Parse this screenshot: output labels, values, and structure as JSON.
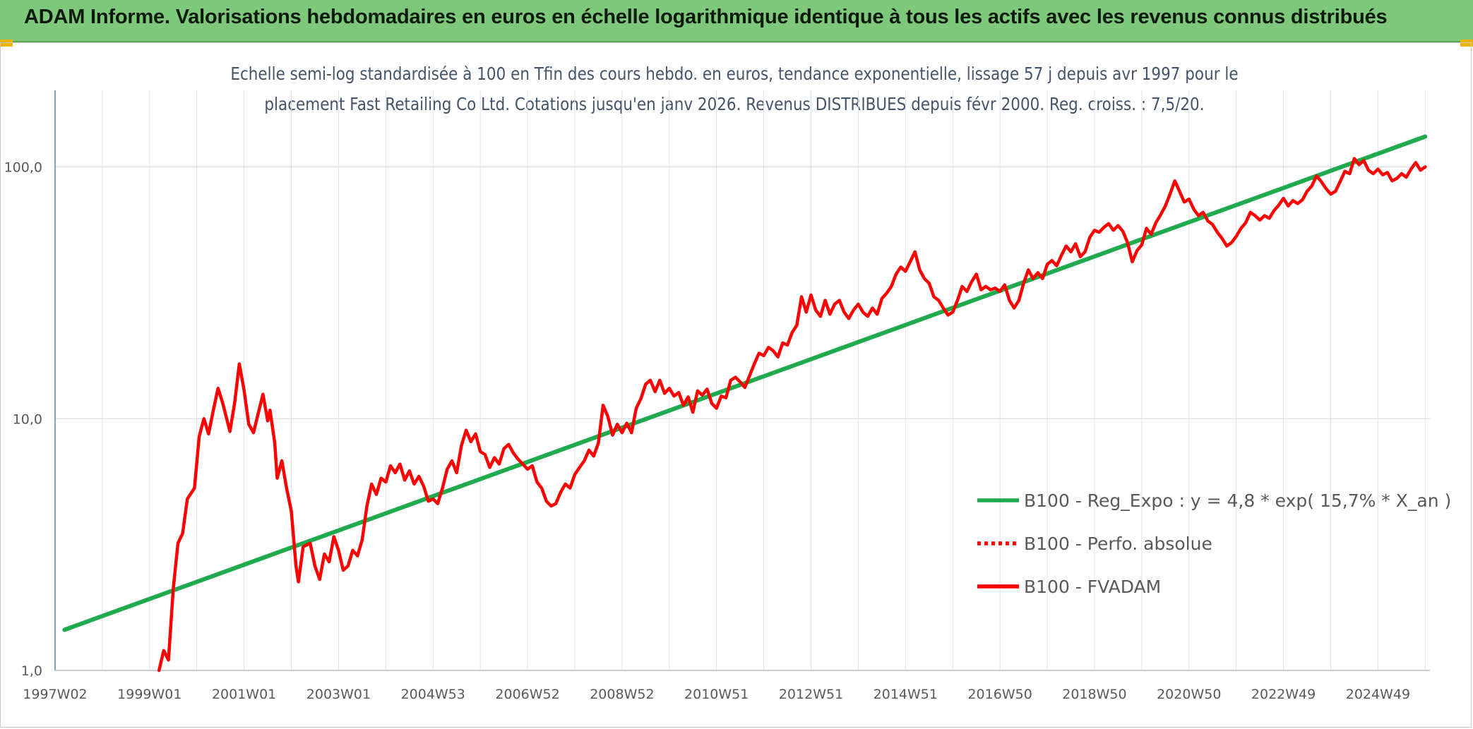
{
  "header": {
    "title": "ADAM Informe. Valorisations hebdomadaires en euros en échelle logarithmique identique à tous les actifs avec les revenus connus distribués",
    "background": "#7dc87a",
    "accent": "#f0b400"
  },
  "chart_data": {
    "type": "line",
    "yscale": "log",
    "title_line1": "Echelle semi-log standardisée à 100 en Tfin des cours hebdo. en euros, tendance exponentielle, lissage 57 j depuis avr 1997 pour le",
    "title_line2": "placement Fast Retailing Co Ltd. Cotations jusqu'en janv 2026. Revenus DISTRIBUES depuis févr 2000. Reg. croiss. : 7,5/20.",
    "xlim": [
      1997.0,
      2026.1
    ],
    "ylim": [
      1,
      200
    ],
    "y_ticks": [
      {
        "value": 1,
        "label": "1,0"
      },
      {
        "value": 10,
        "label": "10,0"
      },
      {
        "value": 100,
        "label": "100,0"
      }
    ],
    "x_ticks": [
      {
        "t": 1997.0,
        "label": "1997W02"
      },
      {
        "t": 1999.0,
        "label": "1999W01"
      },
      {
        "t": 2001.0,
        "label": "2001W01"
      },
      {
        "t": 2003.0,
        "label": "2003W01"
      },
      {
        "t": 2005.0,
        "label": "2004W53"
      },
      {
        "t": 2007.0,
        "label": "2006W52"
      },
      {
        "t": 2009.0,
        "label": "2008W52"
      },
      {
        "t": 2011.0,
        "label": "2010W51"
      },
      {
        "t": 2013.0,
        "label": "2012W51"
      },
      {
        "t": 2015.0,
        "label": "2014W51"
      },
      {
        "t": 2017.0,
        "label": "2016W50"
      },
      {
        "t": 2019.0,
        "label": "2018W50"
      },
      {
        "t": 2021.0,
        "label": "2020W50"
      },
      {
        "t": 2023.0,
        "label": "2022W49"
      },
      {
        "t": 2025.0,
        "label": "2024W49"
      }
    ],
    "legend_position": "right",
    "series": [
      {
        "name": "B100 - Reg_Expo : y = 4,8 * exp( 15,7% *  X_an )",
        "color": "#1faa4e",
        "style": "solid",
        "points": [
          [
            1997.2,
            1.45
          ],
          [
            2026.0,
            132
          ]
        ]
      },
      {
        "name": "B100 - Perfo. absolue",
        "color": "#ff0000",
        "style": "dotted",
        "points": []
      },
      {
        "name": "B100 - FVADAM",
        "color": "#ff0000",
        "style": "solid",
        "points": [
          [
            1999.2,
            1.0
          ],
          [
            1999.3,
            1.2
          ],
          [
            1999.4,
            1.1
          ],
          [
            1999.5,
            2.1
          ],
          [
            1999.6,
            3.2
          ],
          [
            1999.7,
            3.5
          ],
          [
            1999.8,
            4.8
          ],
          [
            1999.95,
            5.3
          ],
          [
            2000.05,
            8.5
          ],
          [
            2000.15,
            10.0
          ],
          [
            2000.25,
            8.7
          ],
          [
            2000.35,
            10.8
          ],
          [
            2000.45,
            13.2
          ],
          [
            2000.55,
            11.5
          ],
          [
            2000.7,
            8.9
          ],
          [
            2000.8,
            11.5
          ],
          [
            2000.9,
            16.5
          ],
          [
            2001.0,
            13.0
          ],
          [
            2001.1,
            9.5
          ],
          [
            2001.2,
            8.8
          ],
          [
            2001.3,
            10.5
          ],
          [
            2001.4,
            12.5
          ],
          [
            2001.5,
            9.8
          ],
          [
            2001.55,
            10.8
          ],
          [
            2001.65,
            8.0
          ],
          [
            2001.7,
            5.8
          ],
          [
            2001.8,
            6.8
          ],
          [
            2001.9,
            5.3
          ],
          [
            2002.0,
            4.3
          ],
          [
            2002.1,
            2.6
          ],
          [
            2002.15,
            2.25
          ],
          [
            2002.25,
            3.1
          ],
          [
            2002.4,
            3.2
          ],
          [
            2002.5,
            2.6
          ],
          [
            2002.6,
            2.3
          ],
          [
            2002.7,
            2.9
          ],
          [
            2002.8,
            2.7
          ],
          [
            2002.9,
            3.4
          ],
          [
            2003.0,
            3.0
          ],
          [
            2003.1,
            2.5
          ],
          [
            2003.2,
            2.6
          ],
          [
            2003.3,
            3.0
          ],
          [
            2003.4,
            2.85
          ],
          [
            2003.5,
            3.3
          ],
          [
            2003.6,
            4.5
          ],
          [
            2003.7,
            5.5
          ],
          [
            2003.8,
            5.0
          ],
          [
            2003.9,
            5.8
          ],
          [
            2004.0,
            5.6
          ],
          [
            2004.1,
            6.5
          ],
          [
            2004.2,
            6.1
          ],
          [
            2004.3,
            6.6
          ],
          [
            2004.4,
            5.7
          ],
          [
            2004.5,
            6.2
          ],
          [
            2004.6,
            5.5
          ],
          [
            2004.7,
            5.9
          ],
          [
            2004.8,
            5.4
          ],
          [
            2004.9,
            4.7
          ],
          [
            2005.0,
            4.8
          ],
          [
            2005.1,
            4.6
          ],
          [
            2005.2,
            5.3
          ],
          [
            2005.3,
            6.3
          ],
          [
            2005.4,
            6.8
          ],
          [
            2005.5,
            6.1
          ],
          [
            2005.6,
            7.8
          ],
          [
            2005.7,
            9.0
          ],
          [
            2005.8,
            8.1
          ],
          [
            2005.9,
            8.7
          ],
          [
            2006.0,
            7.4
          ],
          [
            2006.1,
            7.2
          ],
          [
            2006.2,
            6.4
          ],
          [
            2006.3,
            7.0
          ],
          [
            2006.4,
            6.6
          ],
          [
            2006.5,
            7.6
          ],
          [
            2006.6,
            7.9
          ],
          [
            2006.7,
            7.3
          ],
          [
            2006.8,
            6.9
          ],
          [
            2006.9,
            6.6
          ],
          [
            2007.0,
            6.3
          ],
          [
            2007.1,
            6.5
          ],
          [
            2007.2,
            5.6
          ],
          [
            2007.3,
            5.3
          ],
          [
            2007.4,
            4.7
          ],
          [
            2007.5,
            4.5
          ],
          [
            2007.6,
            4.6
          ],
          [
            2007.7,
            5.1
          ],
          [
            2007.8,
            5.5
          ],
          [
            2007.9,
            5.3
          ],
          [
            2008.0,
            6.0
          ],
          [
            2008.1,
            6.4
          ],
          [
            2008.2,
            6.8
          ],
          [
            2008.3,
            7.5
          ],
          [
            2008.4,
            7.1
          ],
          [
            2008.5,
            8.0
          ],
          [
            2008.6,
            11.3
          ],
          [
            2008.7,
            10.2
          ],
          [
            2008.8,
            8.6
          ],
          [
            2008.9,
            9.5
          ],
          [
            2009.0,
            8.8
          ],
          [
            2009.1,
            9.6
          ],
          [
            2009.2,
            8.8
          ],
          [
            2009.3,
            11.0
          ],
          [
            2009.4,
            12.0
          ],
          [
            2009.5,
            13.7
          ],
          [
            2009.6,
            14.2
          ],
          [
            2009.7,
            12.8
          ],
          [
            2009.8,
            14.2
          ],
          [
            2009.9,
            12.6
          ],
          [
            2010.0,
            13.2
          ],
          [
            2010.1,
            12.3
          ],
          [
            2010.2,
            12.7
          ],
          [
            2010.3,
            11.3
          ],
          [
            2010.4,
            12.2
          ],
          [
            2010.5,
            10.6
          ],
          [
            2010.6,
            12.9
          ],
          [
            2010.7,
            12.4
          ],
          [
            2010.8,
            13.1
          ],
          [
            2010.9,
            11.5
          ],
          [
            2011.0,
            11.0
          ],
          [
            2011.1,
            12.3
          ],
          [
            2011.2,
            12.1
          ],
          [
            2011.3,
            14.2
          ],
          [
            2011.4,
            14.6
          ],
          [
            2011.5,
            14.0
          ],
          [
            2011.6,
            13.3
          ],
          [
            2011.7,
            14.8
          ],
          [
            2011.8,
            16.5
          ],
          [
            2011.9,
            18.2
          ],
          [
            2012.0,
            17.8
          ],
          [
            2012.1,
            19.2
          ],
          [
            2012.2,
            18.6
          ],
          [
            2012.3,
            17.6
          ],
          [
            2012.4,
            20.0
          ],
          [
            2012.5,
            19.6
          ],
          [
            2012.6,
            22.0
          ],
          [
            2012.7,
            23.5
          ],
          [
            2012.8,
            30.5
          ],
          [
            2012.9,
            26.5
          ],
          [
            2013.0,
            31.0
          ],
          [
            2013.1,
            27.0
          ],
          [
            2013.2,
            25.5
          ],
          [
            2013.3,
            29.5
          ],
          [
            2013.4,
            26.0
          ],
          [
            2013.5,
            28.5
          ],
          [
            2013.6,
            29.5
          ],
          [
            2013.7,
            26.5
          ],
          [
            2013.8,
            25.0
          ],
          [
            2013.9,
            27.0
          ],
          [
            2014.0,
            28.5
          ],
          [
            2014.1,
            26.5
          ],
          [
            2014.2,
            25.5
          ],
          [
            2014.3,
            27.5
          ],
          [
            2014.4,
            26.0
          ],
          [
            2014.5,
            30.0
          ],
          [
            2014.6,
            31.5
          ],
          [
            2014.7,
            33.5
          ],
          [
            2014.8,
            37.5
          ],
          [
            2014.9,
            40.0
          ],
          [
            2015.0,
            38.5
          ],
          [
            2015.1,
            42.0
          ],
          [
            2015.2,
            46.0
          ],
          [
            2015.3,
            39.0
          ],
          [
            2015.4,
            36.0
          ],
          [
            2015.5,
            34.5
          ],
          [
            2015.6,
            30.5
          ],
          [
            2015.7,
            29.5
          ],
          [
            2015.8,
            27.5
          ],
          [
            2015.9,
            25.8
          ],
          [
            2016.0,
            26.5
          ],
          [
            2016.1,
            29.5
          ],
          [
            2016.2,
            33.5
          ],
          [
            2016.3,
            32.0
          ],
          [
            2016.4,
            35.0
          ],
          [
            2016.5,
            37.5
          ],
          [
            2016.6,
            32.5
          ],
          [
            2016.7,
            33.5
          ],
          [
            2016.8,
            32.5
          ],
          [
            2016.9,
            33.0
          ],
          [
            2017.0,
            32.0
          ],
          [
            2017.1,
            34.0
          ],
          [
            2017.2,
            29.5
          ],
          [
            2017.3,
            27.5
          ],
          [
            2017.4,
            29.5
          ],
          [
            2017.5,
            34.5
          ],
          [
            2017.6,
            39.0
          ],
          [
            2017.7,
            36.0
          ],
          [
            2017.8,
            38.0
          ],
          [
            2017.9,
            36.0
          ],
          [
            2018.0,
            41.0
          ],
          [
            2018.1,
            42.5
          ],
          [
            2018.2,
            40.5
          ],
          [
            2018.3,
            44.5
          ],
          [
            2018.4,
            48.5
          ],
          [
            2018.5,
            46.0
          ],
          [
            2018.6,
            49.5
          ],
          [
            2018.7,
            44.0
          ],
          [
            2018.8,
            46.0
          ],
          [
            2018.9,
            52.5
          ],
          [
            2019.0,
            56.0
          ],
          [
            2019.1,
            55.0
          ],
          [
            2019.2,
            57.5
          ],
          [
            2019.3,
            59.5
          ],
          [
            2019.4,
            56.0
          ],
          [
            2019.5,
            58.5
          ],
          [
            2019.6,
            55.5
          ],
          [
            2019.7,
            50.0
          ],
          [
            2019.8,
            42.0
          ],
          [
            2019.9,
            46.5
          ],
          [
            2020.0,
            49.0
          ],
          [
            2020.1,
            57.0
          ],
          [
            2020.2,
            54.0
          ],
          [
            2020.3,
            60.0
          ],
          [
            2020.4,
            64.5
          ],
          [
            2020.5,
            70.0
          ],
          [
            2020.6,
            78.0
          ],
          [
            2020.7,
            88.0
          ],
          [
            2020.8,
            80.0
          ],
          [
            2020.9,
            72.5
          ],
          [
            2021.0,
            74.5
          ],
          [
            2021.1,
            68.0
          ],
          [
            2021.2,
            64.0
          ],
          [
            2021.3,
            66.0
          ],
          [
            2021.4,
            61.0
          ],
          [
            2021.5,
            59.0
          ],
          [
            2021.6,
            55.0
          ],
          [
            2021.7,
            52.0
          ],
          [
            2021.8,
            48.5
          ],
          [
            2021.9,
            50.0
          ],
          [
            2022.0,
            53.0
          ],
          [
            2022.1,
            57.0
          ],
          [
            2022.2,
            60.0
          ],
          [
            2022.3,
            66.0
          ],
          [
            2022.4,
            64.0
          ],
          [
            2022.5,
            61.5
          ],
          [
            2022.6,
            64.0
          ],
          [
            2022.7,
            62.5
          ],
          [
            2022.8,
            67.0
          ],
          [
            2022.9,
            70.5
          ],
          [
            2023.0,
            75.0
          ],
          [
            2023.1,
            70.0
          ],
          [
            2023.2,
            73.5
          ],
          [
            2023.3,
            71.5
          ],
          [
            2023.4,
            74.0
          ],
          [
            2023.5,
            80.0
          ],
          [
            2023.6,
            84.0
          ],
          [
            2023.7,
            92.0
          ],
          [
            2023.8,
            87.5
          ],
          [
            2023.9,
            82.0
          ],
          [
            2024.0,
            78.0
          ],
          [
            2024.1,
            80.0
          ],
          [
            2024.2,
            87.5
          ],
          [
            2024.3,
            96.0
          ],
          [
            2024.4,
            94.0
          ],
          [
            2024.5,
            108.0
          ],
          [
            2024.6,
            102.0
          ],
          [
            2024.7,
            106.0
          ],
          [
            2024.8,
            97.0
          ],
          [
            2024.9,
            94.0
          ],
          [
            2025.0,
            98.0
          ],
          [
            2025.1,
            93.0
          ],
          [
            2025.2,
            95.0
          ],
          [
            2025.3,
            88.0
          ],
          [
            2025.4,
            90.0
          ],
          [
            2025.5,
            94.0
          ],
          [
            2025.6,
            91.0
          ],
          [
            2025.7,
            98.0
          ],
          [
            2025.8,
            104.0
          ],
          [
            2025.9,
            97.0
          ],
          [
            2026.0,
            100.0
          ]
        ]
      }
    ]
  }
}
